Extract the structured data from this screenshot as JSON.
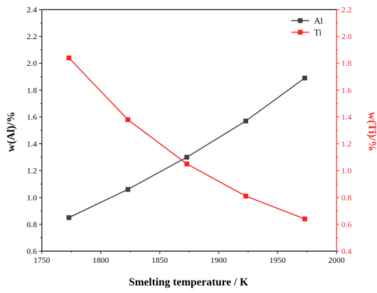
{
  "chart_data": {
    "type": "line",
    "dual_axis": true,
    "x": [
      1773,
      1823,
      1873,
      1923,
      1973
    ],
    "xlabel": "Smelting temperature / K",
    "xlim": [
      1750,
      2000
    ],
    "xticks": [
      1750,
      1800,
      1850,
      1900,
      1950,
      2000
    ],
    "ylabel_left": "w(Al)/%",
    "ylim_left": [
      0.6,
      2.4
    ],
    "yticks_left": [
      0.6,
      0.8,
      1.0,
      1.2,
      1.4,
      1.6,
      1.8,
      2.0,
      2.2,
      2.4
    ],
    "ylabel_right": "w(Ti)/%",
    "ylim_right": [
      0.4,
      2.2
    ],
    "yticks_right": [
      0.4,
      0.6,
      0.8,
      1.0,
      1.2,
      1.4,
      1.6,
      1.8,
      2.0,
      2.2
    ],
    "tick_decimals": 1,
    "legend_position": "top-right",
    "grid": false,
    "series": [
      {
        "name": "Al",
        "axis": "left",
        "color": "#3f3f3f",
        "marker": "square",
        "values": [
          0.85,
          1.06,
          1.3,
          1.57,
          1.89
        ]
      },
      {
        "name": "Ti",
        "axis": "right",
        "color": "#ff1f1f",
        "marker": "square",
        "values": [
          1.84,
          1.38,
          1.05,
          0.81,
          0.64
        ]
      }
    ]
  }
}
